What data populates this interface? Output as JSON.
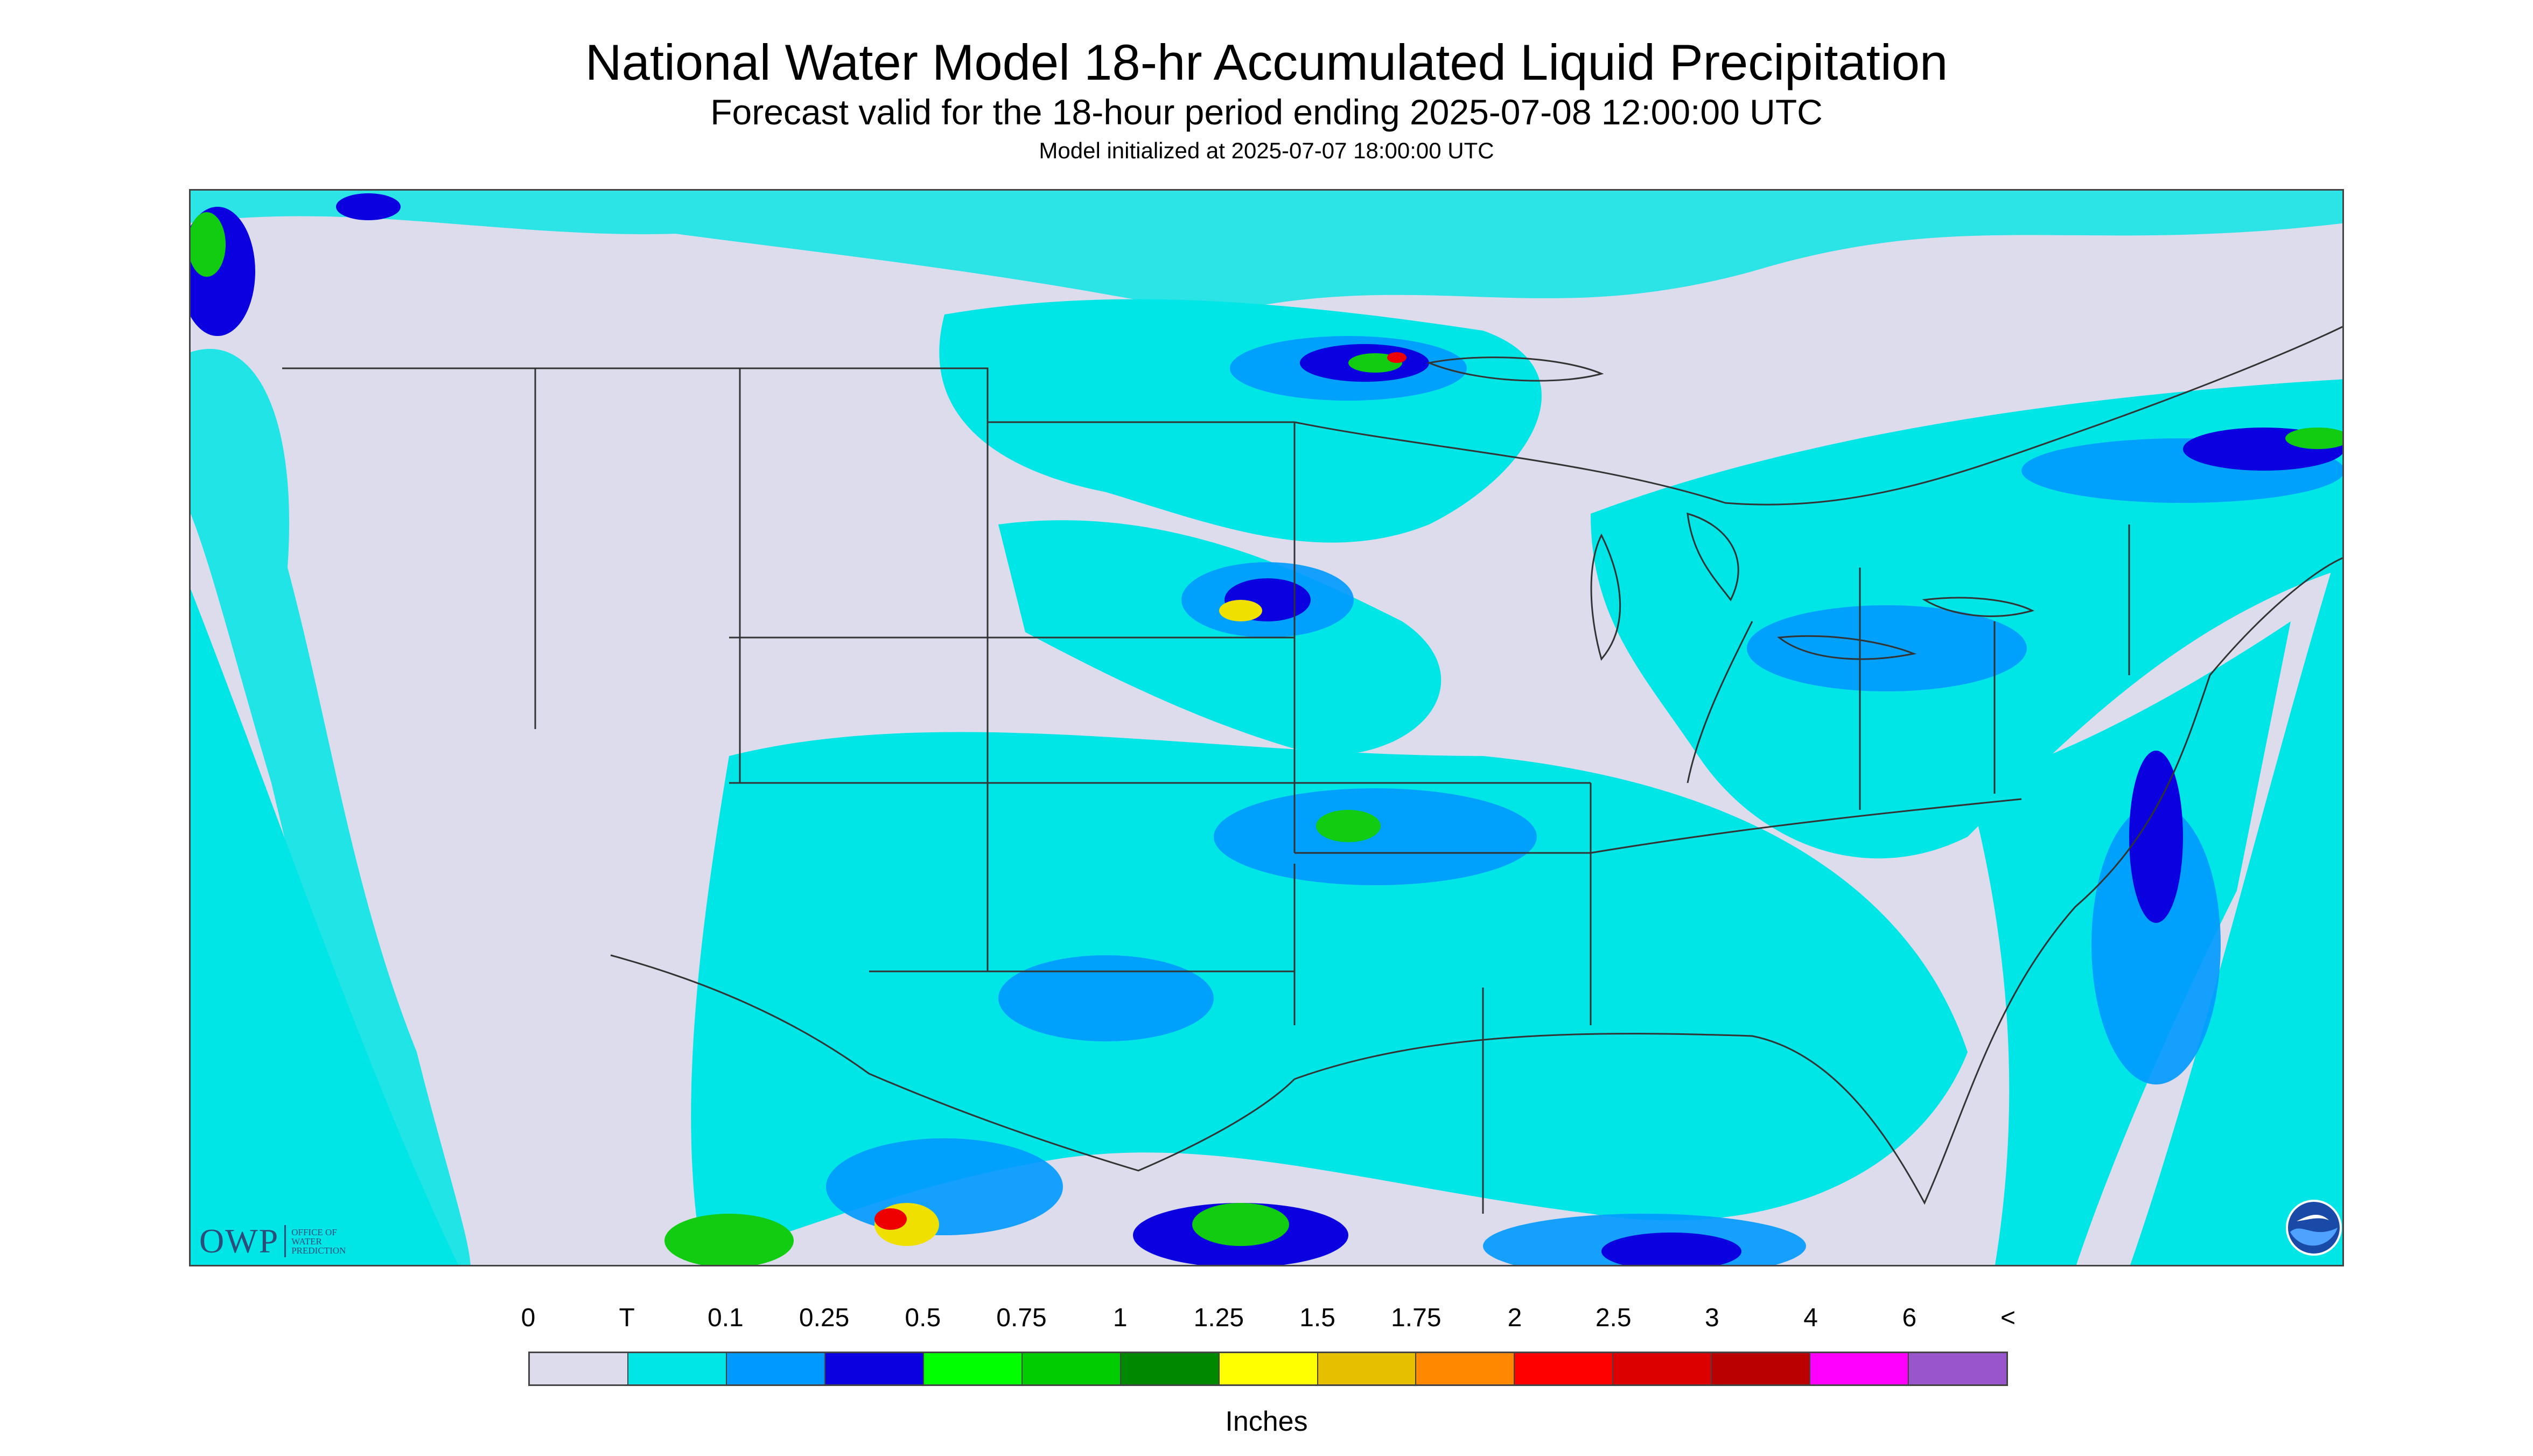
{
  "title": "National Water Model 18-hr Accumulated Liquid Precipitation",
  "subtitle": "Forecast valid for the 18-hour period ending 2025-07-08 12:00:00 UTC",
  "init_line": "Model initialized at 2025-07-07 18:00:00 UTC",
  "logos": {
    "owp_text": "OWP",
    "owp_small": [
      "OFFICE OF",
      "WATER",
      "PREDICTION"
    ],
    "noaa_icon": "noaa-logo"
  },
  "colors": {
    "background": "#dcdcec",
    "trace": "#00e5e5",
    "light": "#0099ff",
    "medium": "#0a00e0",
    "heavy_green": "#11cc11",
    "heavy_yellow": "#f0e000",
    "heavy_red": "#ee0000"
  },
  "legend": {
    "labels": [
      "0",
      "T",
      "0.1",
      "0.25",
      "0.5",
      "0.75",
      "1",
      "1.25",
      "1.5",
      "1.75",
      "2",
      "2.5",
      "3",
      "4",
      "6",
      "<"
    ],
    "swatches": [
      "#dcdcec",
      "#00e5e5",
      "#0099ff",
      "#0a00e0",
      "#00ff00",
      "#00cc00",
      "#008800",
      "#ffff00",
      "#e5bf00",
      "#ff8800",
      "#ff0000",
      "#dd0000",
      "#bb0000",
      "#ff00ff",
      "#9955cc"
    ],
    "units": "Inches"
  }
}
